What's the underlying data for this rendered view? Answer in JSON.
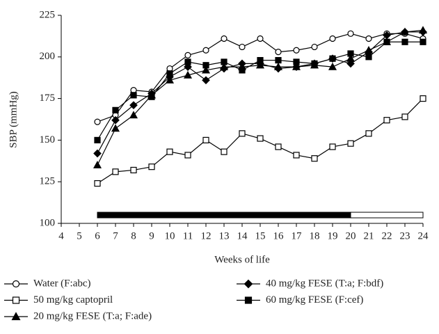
{
  "chart_data": {
    "type": "line",
    "x_label": "Weeks of life",
    "y_label": "SBP (mmHg)",
    "x": [
      6,
      7,
      8,
      9,
      10,
      11,
      12,
      13,
      14,
      15,
      16,
      17,
      18,
      19,
      20,
      21,
      22,
      23,
      24
    ],
    "xlim": [
      4,
      24
    ],
    "xticks": [
      4,
      5,
      6,
      7,
      8,
      9,
      10,
      11,
      12,
      13,
      14,
      15,
      16,
      17,
      18,
      19,
      20,
      21,
      22,
      23,
      24
    ],
    "ylim": [
      100,
      225
    ],
    "yticks": [
      100,
      125,
      150,
      175,
      200,
      225
    ],
    "series": [
      {
        "name": "Water (F:abc)",
        "color": "#000000",
        "marker": "circle",
        "filled": false,
        "values": [
          161,
          165,
          180,
          179,
          193,
          201,
          204,
          211,
          206,
          211,
          203,
          204,
          206,
          211,
          214,
          211,
          214,
          214,
          211
        ]
      },
      {
        "name": "50 mg/kg captopril",
        "color": "#000000",
        "marker": "square",
        "filled": false,
        "values": [
          124,
          131,
          132,
          134,
          143,
          141,
          150,
          143,
          154,
          151,
          146,
          141,
          139,
          146,
          148,
          154,
          162,
          164,
          175
        ]
      },
      {
        "name": "20 mg/kg FESE (T:a; F:ade)",
        "color": "#000000",
        "marker": "triangle",
        "filled": true,
        "values": [
          135,
          157,
          165,
          177,
          186,
          189,
          192,
          194,
          194,
          195,
          194,
          194,
          195,
          194,
          199,
          204,
          209,
          215,
          216
        ]
      },
      {
        "name": "40 mg/kg FESE (T:a; F:bdf)",
        "color": "#000000",
        "marker": "diamond",
        "filled": true,
        "values": [
          142,
          162,
          171,
          178,
          188,
          194,
          186,
          193,
          196,
          196,
          193,
          194,
          196,
          199,
          196,
          203,
          213,
          215,
          215
        ]
      },
      {
        "name": "60 mg/kg FESE (F:cef)",
        "color": "#000000",
        "marker": "square",
        "filled": true,
        "values": [
          150,
          168,
          177,
          176,
          190,
          197,
          195,
          197,
          192,
          198,
          198,
          197,
          196,
          199,
          202,
          200,
          209,
          209,
          209
        ]
      }
    ],
    "treatment_bar": {
      "y": 105,
      "segments": [
        {
          "start": 6,
          "end": 20,
          "color": "#000000"
        },
        {
          "start": 20,
          "end": 24,
          "color": "#ffffff"
        }
      ]
    }
  }
}
